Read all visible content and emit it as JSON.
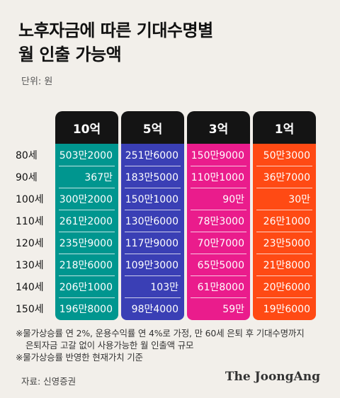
{
  "title_lines": [
    "노후자금에 따른 기대수명별",
    "월 인출 가능액"
  ],
  "unit_label": "단위: 원",
  "chart_data": {
    "type": "table",
    "title": "노후자금에 따른 기대수명별 월 인출 가능액",
    "unit": "원",
    "columns": [
      {
        "label": "10억",
        "color": "#00968f"
      },
      {
        "label": "5억",
        "color": "#3a3fb5"
      },
      {
        "label": "3억",
        "color": "#ea1c8c"
      },
      {
        "label": "1억",
        "color": "#ff4a14"
      }
    ],
    "rows": [
      {
        "age": "80세",
        "values": [
          "503만2000",
          "251만6000",
          "150만9000",
          "50만3000"
        ]
      },
      {
        "age": "90세",
        "values": [
          "367만",
          "183만5000",
          "110만1000",
          "36만7000"
        ]
      },
      {
        "age": "100세",
        "values": [
          "300만2000",
          "150만1000",
          "90만",
          "30만"
        ]
      },
      {
        "age": "110세",
        "values": [
          "261만2000",
          "130만6000",
          "78만3000",
          "26만1000"
        ]
      },
      {
        "age": "120세",
        "values": [
          "235만9000",
          "117만9000",
          "70만7000",
          "23만5000"
        ]
      },
      {
        "age": "130세",
        "values": [
          "218만6000",
          "109만3000",
          "65만5000",
          "21만8000"
        ]
      },
      {
        "age": "140세",
        "values": [
          "206만1000",
          "103만",
          "61만8000",
          "20만6000"
        ]
      },
      {
        "age": "150세",
        "values": [
          "196만8000",
          "98만4000",
          "59만",
          "19만6000"
        ]
      }
    ]
  },
  "notes": [
    "※물가상승률 연 2%, 운용수익률 연 4%로 가정, 만 60세 은퇴 후 기대수명까지",
    "은퇴자금 고갈 없이 사용가능한 월 인출액 규모",
    "※물가상승률 반영한 현재가치 기준"
  ],
  "source": "자료: 신영증권",
  "logo_text": "The JoongAng"
}
